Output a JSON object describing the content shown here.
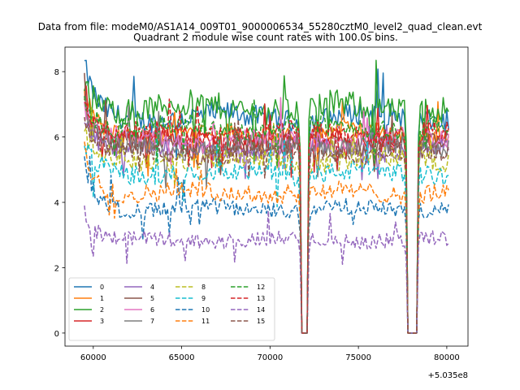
{
  "chart_data": {
    "type": "line",
    "suptitle": "Data from file: modeM0/AS1A14_009T01_9000006534_55280cztM0_level2_quad_clean.evt",
    "title": "Quadrant 2 module wise count rates with 100.0s bins.",
    "xlabel": "",
    "ylabel": "",
    "x_offset_label": "+5.035e8",
    "xlim": [
      58400,
      81200
    ],
    "ylim": [
      -0.4,
      8.75
    ],
    "x_ticks": [
      60000,
      65000,
      70000,
      75000,
      80000
    ],
    "x_tick_labels": [
      "60000",
      "65000",
      "70000",
      "75000",
      "80000"
    ],
    "y_ticks": [
      0,
      2,
      4,
      6,
      8
    ],
    "y_tick_labels": [
      "0",
      "2",
      "4",
      "6",
      "8"
    ],
    "x_start": 59500,
    "x_end": 80100,
    "bin_width": 100,
    "gaps": [
      [
        71800,
        72100
      ],
      [
        77800,
        78300
      ]
    ],
    "legend": {
      "location": "lower-left",
      "columns": 4
    },
    "series": [
      {
        "name": "0",
        "level": 6.6,
        "start": 8.1,
        "amp": 0.35,
        "style": "solid",
        "color": "#1f77b4"
      },
      {
        "name": "1",
        "level": 6.1,
        "start": 7.4,
        "amp": 0.3,
        "style": "solid",
        "color": "#ff7f0e"
      },
      {
        "name": "2",
        "level": 6.9,
        "start": 7.7,
        "amp": 0.4,
        "style": "solid",
        "color": "#2ca02c"
      },
      {
        "name": "3",
        "level": 5.9,
        "start": 7.2,
        "amp": 0.3,
        "style": "solid",
        "color": "#d62728"
      },
      {
        "name": "4",
        "level": 5.6,
        "start": 6.8,
        "amp": 0.3,
        "style": "solid",
        "color": "#9467bd"
      },
      {
        "name": "5",
        "level": 5.8,
        "start": 7.0,
        "amp": 0.3,
        "style": "solid",
        "color": "#8c564b"
      },
      {
        "name": "6",
        "level": 5.9,
        "start": 7.0,
        "amp": 0.3,
        "style": "solid",
        "color": "#e377c2"
      },
      {
        "name": "7",
        "level": 5.7,
        "start": 6.9,
        "amp": 0.3,
        "style": "solid",
        "color": "#7f7f7f"
      },
      {
        "name": "8",
        "level": 5.3,
        "start": 6.0,
        "amp": 0.3,
        "style": "dashed",
        "color": "#bcbd22"
      },
      {
        "name": "9",
        "level": 4.9,
        "start": 5.7,
        "amp": 0.3,
        "style": "dashed",
        "color": "#17becf"
      },
      {
        "name": "10",
        "level": 3.8,
        "start": 5.2,
        "amp": 0.25,
        "style": "dashed",
        "color": "#1f77b4"
      },
      {
        "name": "11",
        "level": 4.3,
        "start": 5.6,
        "amp": 0.28,
        "style": "dashed",
        "color": "#ff7f0e"
      },
      {
        "name": "12",
        "level": 6.3,
        "start": 7.3,
        "amp": 0.32,
        "style": "dashed",
        "color": "#2ca02c"
      },
      {
        "name": "13",
        "level": 6.1,
        "start": 7.0,
        "amp": 0.3,
        "style": "dashed",
        "color": "#d62728"
      },
      {
        "name": "14",
        "level": 2.85,
        "start": 3.8,
        "amp": 0.22,
        "style": "dashed",
        "color": "#9467bd"
      },
      {
        "name": "15",
        "level": 5.5,
        "start": 6.6,
        "amp": 0.28,
        "style": "dashed",
        "color": "#8c564b"
      }
    ]
  }
}
